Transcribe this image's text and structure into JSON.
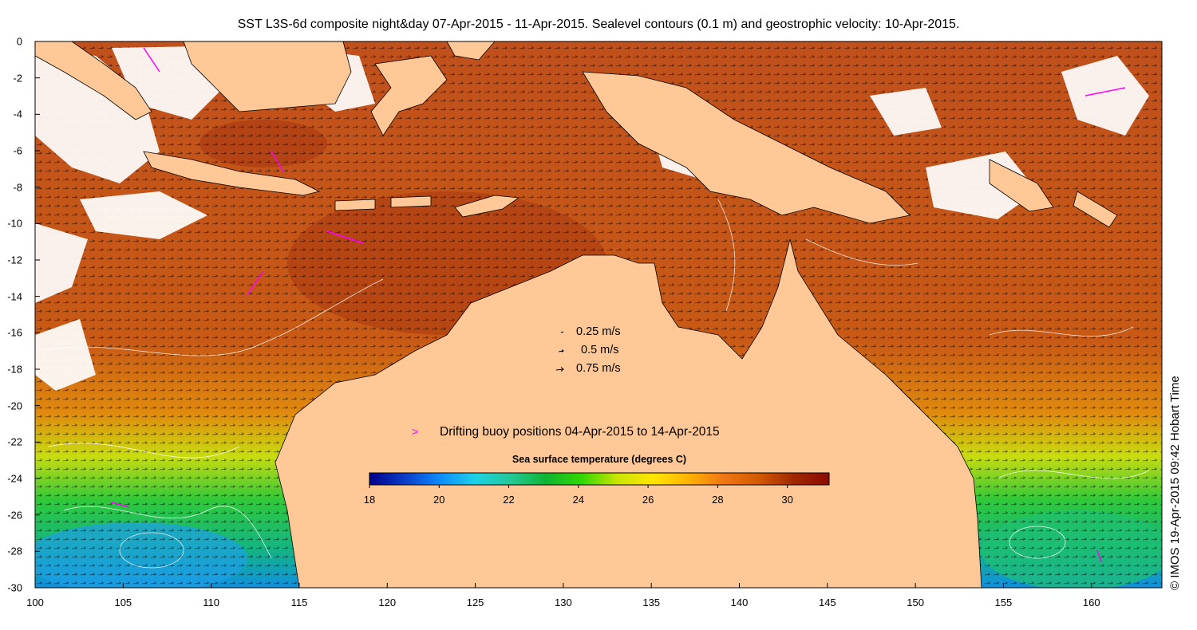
{
  "title": "SST L3S-6d composite night&day 07-Apr-2015 - 11-Apr-2015. Sealevel contours (0.1 m) and geostrophic velocity: 10-Apr-2015.",
  "side_label": "© IMOS 19-Apr-2015 09:42 Hobart Time",
  "velocity_legend": [
    {
      "label": "0.25 m/s",
      "speed": 0.25
    },
    {
      "label": "0.5 m/s",
      "speed": 0.5
    },
    {
      "label": "0.75 m/s",
      "speed": 0.75
    }
  ],
  "buoy_legend": {
    "symbol": ">",
    "label": "Drifting buoy positions 04-Apr-2015 to 14-Apr-2015",
    "color": "#ff00ff"
  },
  "colorbar": {
    "title": "Sea surface temperature (degrees C)",
    "min": 18,
    "max": 31.2,
    "ticks": [
      "18",
      "20",
      "22",
      "24",
      "26",
      "28",
      "30"
    ],
    "colors": [
      "#00008a",
      "#0a3cc8",
      "#0c8cff",
      "#1ed2e6",
      "#23c896",
      "#0fb432",
      "#32d700",
      "#c8e600",
      "#ffe600",
      "#ffb400",
      "#f07814",
      "#d25a00",
      "#a02800",
      "#8c0a00"
    ]
  },
  "axes": {
    "x_ticks": [
      "100",
      "105",
      "110",
      "115",
      "120",
      "125",
      "130",
      "135",
      "140",
      "145",
      "150",
      "155",
      "160"
    ],
    "y_ticks": [
      "0",
      "-2",
      "-4",
      "-6",
      "-8",
      "-10",
      "-12",
      "-14",
      "-16",
      "-18",
      "-20",
      "-22",
      "-24",
      "-26",
      "-28",
      "-30"
    ],
    "lon_range": [
      100,
      164
    ],
    "lat_range": [
      -30,
      0
    ]
  },
  "colors": {
    "land": "#ffc896",
    "cloud": "#ffffff",
    "warm": "#c0501c"
  }
}
